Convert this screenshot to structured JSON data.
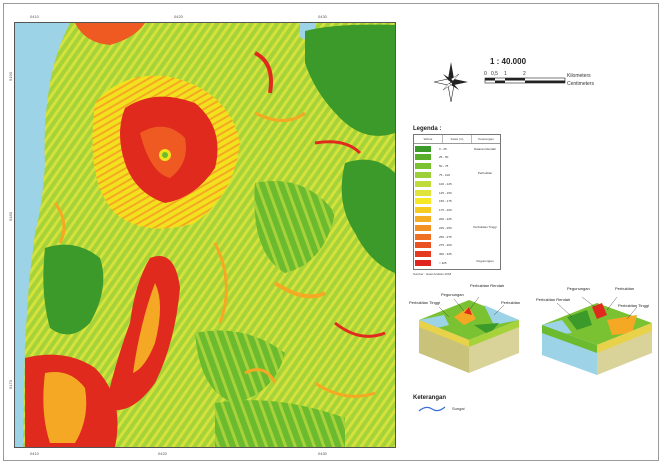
{
  "map": {
    "top_ticks": [
      "0410",
      "0420",
      "0430"
    ],
    "bottom_ticks": [
      "0410",
      "0420",
      "0430"
    ],
    "left_ticks": [
      "9190",
      "9180",
      "9170"
    ],
    "colors": {
      "sea": "#9cd3e6",
      "dark_green": "#3c9a2a",
      "green": "#6cba2e",
      "light_green": "#a6d23a",
      "yellow_green": "#d4e23a",
      "yellow": "#f2e21e",
      "orange": "#f5a823",
      "red_orange": "#ee5a22",
      "red": "#e02a1e"
    }
  },
  "scale": {
    "ratio": "1 : 40.000",
    "ticks": [
      "0",
      "0,5",
      "1",
      "2"
    ],
    "units": [
      "Kilometers",
      "Centimeters"
    ]
  },
  "compass": {
    "icon": "north-arrow-icon"
  },
  "legend": {
    "title": "Legenda :",
    "headers": [
      "Warna",
      "Kelas (m)",
      "Keterangan"
    ],
    "rows": [
      {
        "color": "#3c9a2a",
        "range": "0 - 25"
      },
      {
        "color": "#5aae2c",
        "range": "25 - 50"
      },
      {
        "color": "#7bc233",
        "range": "50 - 75"
      },
      {
        "color": "#9ccf39",
        "range": "75 - 100"
      },
      {
        "color": "#bfdc3a",
        "range": "100 - 125"
      },
      {
        "color": "#dfe43a",
        "range": "125 - 150"
      },
      {
        "color": "#f5e825",
        "range": "150 - 175"
      },
      {
        "color": "#f6cb22",
        "range": "175 - 200"
      },
      {
        "color": "#f5ad23",
        "range": "200 - 225"
      },
      {
        "color": "#f39024",
        "range": "225 - 250"
      },
      {
        "color": "#ef7024",
        "range": "250 - 275"
      },
      {
        "color": "#ea5222",
        "range": "275 - 300"
      },
      {
        "color": "#e43a1f",
        "range": "300 - 325"
      },
      {
        "color": "#de241c",
        "range": "> 325"
      }
    ],
    "classes": [
      "Dataran Rendah",
      "Perbukitan",
      "Perbukitan Tinggi",
      "Pegunungan"
    ],
    "source": "Sumber : Hasil Analisis 2018"
  },
  "blocks": {
    "left": [
      "Perbukitan Tinggi",
      "Pegunungan",
      "Perbukitan Rendah",
      "Perbukitan"
    ],
    "right": [
      "Pegunungan",
      "Perbukitan",
      "Perbukitan Rendah",
      "Perbukitan Tinggi"
    ]
  },
  "reference": {
    "title": "Keterangan",
    "river_label": "Sungai",
    "river_color": "#3a6fd8"
  }
}
